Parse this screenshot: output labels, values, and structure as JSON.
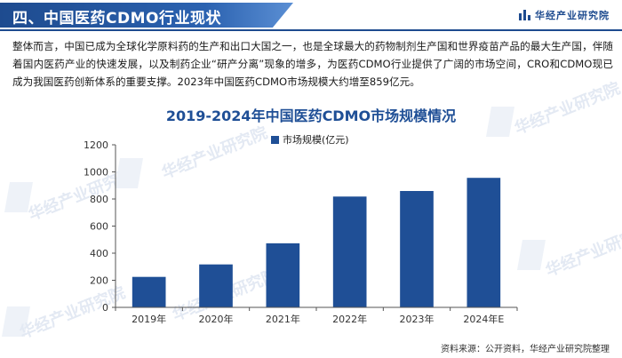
{
  "header": {
    "title": "四、中国医药CDMO行业现状",
    "brand": "华经产业研究院"
  },
  "intro_text": "整体而言，中国已成为全球化学原料药的生产和出口大国之一，也是全球最大的药物制剂生产国和世界疫苗产品的最大生产国，伴随着国内医药产业的快速发展，以及制药企业“研产分离”现象的增多，为医药CDMO行业提供了广阔的市场空间，CRO和CDMO现已成为我国医药创新体系的重要支撑。2023年中国医药CDMO市场规模大约增至859亿元。",
  "chart_data": {
    "type": "bar",
    "title": "2019-2024年中国医药CDMO市场规模情况",
    "categories": [
      "2019年",
      "2020年",
      "2021年",
      "2022年",
      "2023年",
      "2024年E"
    ],
    "series": [
      {
        "name": "市场规模(亿元)",
        "values": [
          225,
          317,
          473,
          818,
          859,
          956
        ]
      }
    ],
    "ylim": [
      0,
      1200
    ],
    "yticks": [
      0,
      200,
      400,
      600,
      800,
      1000,
      1200
    ],
    "bar_color": "#1f4f96",
    "grid": false,
    "legend_position": "top-center"
  },
  "watermark": "华经产业研究院",
  "source": "资料来源：公开资料，华经产业研究院整理",
  "colors": {
    "primary": "#1f4f96",
    "header": "#1e4b8f"
  }
}
